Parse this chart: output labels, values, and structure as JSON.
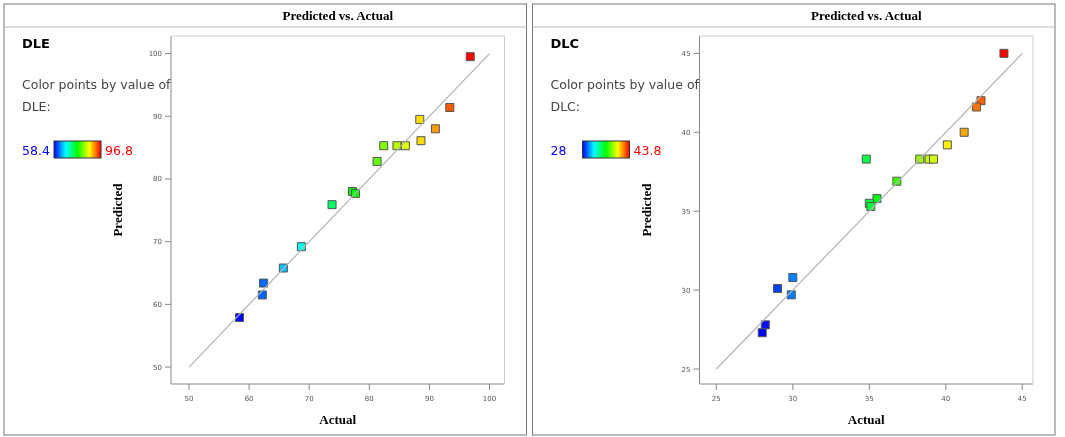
{
  "chart_data": [
    {
      "type": "scatter",
      "title": "Predicted vs. Actual",
      "xlabel": "Actual",
      "ylabel": "Predicted",
      "annotations": [
        "DLE",
        "Color points by value of DLE:",
        "58.4",
        "96.8"
      ],
      "xlim": [
        47,
        102.5
      ],
      "ylim": [
        47.3,
        102.8
      ],
      "xticks": [
        50,
        60,
        70,
        80,
        90,
        100
      ],
      "yticks": [
        50,
        60,
        70,
        80,
        90,
        100
      ],
      "series": [
        {
          "marker": "square",
          "x": [
            96.8,
            93.4,
            88.4,
            91.0,
            88.6,
            82.4,
            84.6,
            86.0,
            81.3,
            77.2,
            77.7,
            73.8,
            68.7,
            65.7,
            62.4,
            62.2,
            58.4
          ],
          "values": [
            99.5,
            91.4,
            89.5,
            88.0,
            86.1,
            85.3,
            85.3,
            85.3,
            82.8,
            78.0,
            77.7,
            75.9,
            69.2,
            65.8,
            63.4,
            61.5,
            57.9
          ],
          "colors": [
            "#ff0000",
            "#ff5a00",
            "#ffdf00",
            "#ff9a00",
            "#ffda00",
            "#80ff00",
            "#baff00",
            "#dfff00",
            "#62ff00",
            "#00ff0b",
            "#02ff00",
            "#00ff65",
            "#00ffec",
            "#00c2ff",
            "#006aff",
            "#0065ff",
            "#0000ff"
          ]
        },
        {
          "type": "line",
          "x": [
            50,
            100
          ],
          "values": [
            50,
            100
          ],
          "color": "#b4b4b4"
        }
      ]
    },
    {
      "type": "scatter",
      "title": "Predicted vs. Actual",
      "xlabel": "Actual",
      "ylabel": "Predicted",
      "annotations": [
        "DLC",
        "Color points by value of DLC:",
        "28",
        "43.8"
      ],
      "xlim": [
        23.9,
        45.7
      ],
      "ylim": [
        24.05,
        46.1
      ],
      "xticks": [
        25,
        30,
        35,
        40,
        45
      ],
      "yticks": [
        25,
        30,
        35,
        40,
        45
      ],
      "series": [
        {
          "marker": "square",
          "x": [
            43.8,
            42.3,
            42.0,
            41.2,
            40.1,
            34.8,
            38.3,
            38.9,
            39.2,
            36.8,
            35.5,
            35.0,
            35.1,
            30.0,
            29.0,
            29.9,
            28.2,
            28.0
          ],
          "values": [
            45.0,
            42.0,
            41.6,
            40.0,
            39.2,
            38.3,
            38.3,
            38.3,
            38.3,
            36.9,
            35.8,
            35.5,
            35.3,
            30.8,
            30.1,
            29.7,
            27.8,
            27.3
          ],
          "colors": [
            "#ff0000",
            "#ff6100",
            "#ff7400",
            "#ffa800",
            "#ffef00",
            "#00ff47",
            "#9bff00",
            "#c2ff00",
            "#d5ff00",
            "#3aff00",
            "#00ff1a",
            "#00ff3a",
            "#00ff34",
            "#0081ff",
            "#0041ff",
            "#007bff",
            "#000dff",
            "#0000ff"
          ]
        },
        {
          "type": "line",
          "x": [
            25,
            45
          ],
          "values": [
            25,
            45
          ],
          "color": "#b4b4b4"
        }
      ]
    }
  ]
}
